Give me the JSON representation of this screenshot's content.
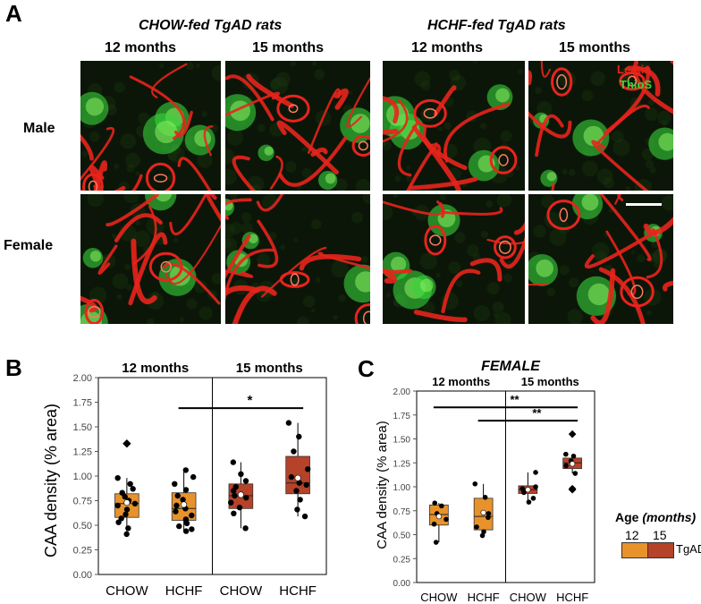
{
  "panel_a": {
    "letter": "A",
    "group_chow": "CHOW-fed TgAD rats",
    "group_hchf": "HCHF-fed TgAD rats",
    "col_labels": [
      "12 months",
      "15 months",
      "12 months",
      "15 months"
    ],
    "row_labels": [
      "Male",
      "Female"
    ],
    "stain_lectin": "Lectin",
    "stain_thios": "ThioS",
    "colors": {
      "lectin": "#e8241c",
      "thios": "#37d43a",
      "background": "#0c1608"
    }
  },
  "chart_data": [
    {
      "panel": "B",
      "type": "box",
      "ylabel": "CAA density (% area)",
      "ylim": [
        0,
        2.0
      ],
      "yticks": [
        "0.00",
        "0.25",
        "0.50",
        "0.75",
        "1.00",
        "1.25",
        "1.50",
        "1.75",
        "2.00"
      ],
      "section_labels": [
        "12 months",
        "15 months"
      ],
      "categories": [
        "CHOW",
        "HCHF",
        "CHOW",
        "HCHF"
      ],
      "significance": [
        {
          "from": "HCHF 12 months",
          "to": "HCHF 15 months",
          "label": "*",
          "y": 1.69
        }
      ],
      "boxes": [
        {
          "category": "CHOW",
          "age": "12",
          "min": 0.41,
          "q1": 0.58,
          "median": 0.72,
          "q3": 0.82,
          "max": 0.98,
          "mean": 0.73,
          "color": "#e8922c",
          "points": [
            0.41,
            0.47,
            0.53,
            0.57,
            0.61,
            0.66,
            0.7,
            0.72,
            0.75,
            0.79,
            0.83,
            0.87,
            0.92,
            0.98
          ],
          "outliers": [
            1.33
          ]
        },
        {
          "category": "HCHF",
          "age": "12",
          "min": 0.44,
          "q1": 0.55,
          "median": 0.67,
          "q3": 0.83,
          "max": 1.06,
          "mean": 0.71,
          "color": "#e8922c",
          "points": [
            0.44,
            0.46,
            0.49,
            0.52,
            0.56,
            0.6,
            0.64,
            0.67,
            0.7,
            0.76,
            0.8,
            0.86,
            0.92,
            0.99,
            1.06
          ],
          "outliers": []
        },
        {
          "category": "CHOW",
          "age": "15",
          "min": 0.47,
          "q1": 0.67,
          "median": 0.8,
          "q3": 0.92,
          "max": 1.14,
          "mean": 0.81,
          "color": "#b5432a",
          "points": [
            0.47,
            0.62,
            0.68,
            0.73,
            0.78,
            0.8,
            0.85,
            0.89,
            0.95,
            1.02,
            1.14
          ],
          "outliers": []
        },
        {
          "category": "HCHF",
          "age": "15",
          "min": 0.59,
          "q1": 0.82,
          "median": 0.93,
          "q3": 1.2,
          "max": 1.54,
          "mean": 0.98,
          "color": "#b5432a",
          "points": [
            0.59,
            0.66,
            0.76,
            0.85,
            0.91,
            0.93,
            0.99,
            1.07,
            1.25,
            1.4,
            1.54
          ],
          "outliers": []
        }
      ]
    },
    {
      "panel": "C",
      "type": "box",
      "title": "FEMALE",
      "ylabel": "CAA density (% area)",
      "ylim": [
        0,
        2.0
      ],
      "yticks": [
        "0.00",
        "0.25",
        "0.50",
        "0.75",
        "1.00",
        "1.25",
        "1.50",
        "1.75",
        "2.00"
      ],
      "section_labels": [
        "12 months",
        "15 months"
      ],
      "categories": [
        "CHOW",
        "HCHF",
        "CHOW",
        "HCHF"
      ],
      "significance": [
        {
          "from": "CHOW 12 months",
          "to": "HCHF 15 months",
          "label": "**",
          "y": 1.83
        },
        {
          "from": "HCHF 12 months",
          "to": "HCHF 15 months",
          "label": "**",
          "y": 1.69
        }
      ],
      "boxes": [
        {
          "category": "CHOW",
          "age": "12",
          "min": 0.42,
          "q1": 0.6,
          "median": 0.71,
          "q3": 0.81,
          "max": 0.83,
          "mean": 0.69,
          "color": "#e8922c",
          "points": [
            0.42,
            0.61,
            0.66,
            0.72,
            0.8,
            0.83
          ],
          "outliers": []
        },
        {
          "category": "HCHF",
          "age": "12",
          "min": 0.49,
          "q1": 0.55,
          "median": 0.69,
          "q3": 0.88,
          "max": 1.03,
          "mean": 0.73,
          "color": "#e8922c",
          "points": [
            0.49,
            0.53,
            0.58,
            0.68,
            0.72,
            0.89,
            1.03
          ],
          "outliers": []
        },
        {
          "category": "CHOW",
          "age": "15",
          "min": 0.84,
          "q1": 0.93,
          "median": 0.97,
          "q3": 1.01,
          "max": 1.15,
          "mean": 0.97,
          "color": "#b5432a",
          "points": [
            0.84,
            0.88,
            0.94,
            0.98,
            1.0,
            1.15
          ],
          "outliers": []
        },
        {
          "category": "HCHF",
          "age": "15",
          "min": 1.14,
          "q1": 1.19,
          "median": 1.25,
          "q3": 1.3,
          "max": 1.34,
          "mean": 1.24,
          "color": "#b5432a",
          "points": [
            1.14,
            1.22,
            1.27,
            1.32,
            1.34
          ],
          "outliers": [
            0.97,
            0.98,
            1.55
          ]
        }
      ]
    }
  ],
  "panel_b": {
    "letter": "B"
  },
  "panel_c": {
    "letter": "C"
  },
  "legend": {
    "title": "Age",
    "title_unit": "(months)",
    "labels": [
      "12",
      "15"
    ],
    "group": "TgAD",
    "colors": [
      "#e8922c",
      "#b5432a"
    ]
  }
}
